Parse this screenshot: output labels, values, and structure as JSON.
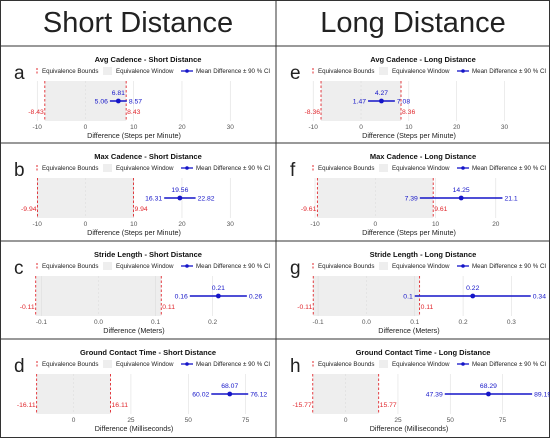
{
  "columns": [
    "Short Distance",
    "Long Distance"
  ],
  "legend": {
    "bounds": "Equivalence Bounds",
    "window": "Equivalence Window",
    "mean": "Mean Difference ± 90 % CI"
  },
  "colors": {
    "red": "#e0282e",
    "blue": "#1515c8",
    "window": "#eeeeee",
    "grid": "#d9d9d9",
    "tick": "#555555"
  },
  "chart_data": [
    {
      "panel": "a",
      "type": "scatter",
      "title": "Avg Cadence - Short Distance",
      "xlabel": "Difference (Steps per Minute)",
      "xticks": [
        -10,
        0,
        10,
        20,
        30
      ],
      "xlim": [
        -11.5,
        37
      ],
      "bounds": [
        -8.43,
        8.43
      ],
      "bounds_labels": [
        "-8.43",
        "8.43"
      ],
      "mean": 6.81,
      "ci": [
        5.06,
        8.57
      ],
      "mean_label": "6.81",
      "ci_labels": [
        "5.06",
        "8.57"
      ]
    },
    {
      "panel": "e",
      "type": "scatter",
      "title": "Avg Cadence - Long Distance",
      "xlabel": "Difference (Steps per Minute)",
      "xticks": [
        -10,
        0,
        10,
        20,
        30
      ],
      "xlim": [
        -11.5,
        37
      ],
      "bounds": [
        -8.36,
        8.36
      ],
      "bounds_labels": [
        "-8.36",
        "8.36"
      ],
      "mean": 4.27,
      "ci": [
        1.47,
        7.08
      ],
      "mean_label": "4.27",
      "ci_labels": [
        "1.47",
        "7.08"
      ]
    },
    {
      "panel": "b",
      "type": "scatter",
      "title": "Max Cadence - Short Distance",
      "xlabel": "Difference (Steps per Minute)",
      "xticks": [
        -10,
        0,
        10,
        20,
        30
      ],
      "xlim": [
        -11.5,
        37
      ],
      "bounds": [
        -9.94,
        9.94
      ],
      "bounds_labels": [
        "-9.94",
        "9.94"
      ],
      "mean": 19.56,
      "ci": [
        16.31,
        22.82
      ],
      "mean_label": "19.56",
      "ci_labels": [
        "16.31",
        "22.82"
      ]
    },
    {
      "panel": "f",
      "type": "scatter",
      "title": "Max Cadence - Long Distance",
      "xlabel": "Difference (Steps per Minute)",
      "xticks": [
        -10,
        0,
        10,
        20
      ],
      "xlim": [
        -11.5,
        27
      ],
      "bounds": [
        -9.61,
        9.61
      ],
      "bounds_labels": [
        "-9.61",
        "9.61"
      ],
      "mean": 14.25,
      "ci": [
        7.39,
        21.1
      ],
      "mean_label": "14.25",
      "ci_labels": [
        "7.39",
        "21.1"
      ]
    },
    {
      "panel": "c",
      "type": "scatter",
      "title": "Stride Length - Short Distance",
      "xlabel": "Difference (Meters)",
      "xticks": [
        -0.1,
        0.0,
        0.1,
        0.2
      ],
      "xtick_labels": [
        "-0.1",
        "0.0",
        "0.1",
        "0.2"
      ],
      "xlim": [
        -0.12,
        0.29
      ],
      "bounds": [
        -0.11,
        0.11
      ],
      "bounds_labels": [
        "-0.11",
        "0.11"
      ],
      "mean": 0.21,
      "ci": [
        0.16,
        0.26
      ],
      "mean_label": "0.21",
      "ci_labels": [
        "0.16",
        "0.26"
      ]
    },
    {
      "panel": "g",
      "type": "scatter",
      "title": "Stride Length - Long Distance",
      "xlabel": "Difference (Meters)",
      "xticks": [
        -0.1,
        0.0,
        0.1,
        0.2,
        0.3
      ],
      "xtick_labels": [
        "-0.1",
        "0.0",
        "0.1",
        "0.2",
        "0.3"
      ],
      "xlim": [
        -0.125,
        0.355
      ],
      "bounds": [
        -0.11,
        0.11
      ],
      "bounds_labels": [
        "-0.11",
        "0.11"
      ],
      "mean": 0.22,
      "ci": [
        0.1,
        0.34
      ],
      "mean_label": "0.22",
      "ci_labels": [
        "0.1",
        "0.34"
      ]
    },
    {
      "panel": "d",
      "type": "scatter",
      "title": "Ground Contact Time - Short Distance",
      "xlabel": "Difference (Milliseconds)",
      "xticks": [
        0,
        25,
        50,
        75
      ],
      "xlim": [
        -19,
        83
      ],
      "bounds": [
        -16.11,
        16.11
      ],
      "bounds_labels": [
        "-16.11",
        "16.11"
      ],
      "mean": 68.07,
      "ci": [
        60.02,
        76.12
      ],
      "mean_label": "68.07",
      "ci_labels": [
        "60.02",
        "76.12"
      ]
    },
    {
      "panel": "h",
      "type": "scatter",
      "title": "Ground Contact Time - Long Distance",
      "xlabel": "Difference (Milliseconds)",
      "xticks": [
        0,
        25,
        50,
        75
      ],
      "xlim": [
        -19,
        92
      ],
      "bounds": [
        -15.77,
        15.77
      ],
      "bounds_labels": [
        "-15.77",
        "15.77"
      ],
      "mean": 68.29,
      "ci": [
        47.39,
        89.19
      ],
      "mean_label": "68.29",
      "ci_labels": [
        "47.39",
        "89.19"
      ]
    }
  ]
}
